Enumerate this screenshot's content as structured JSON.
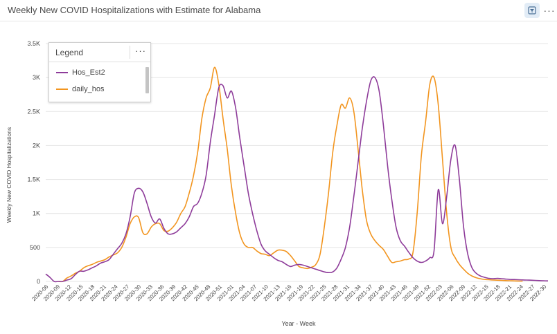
{
  "header": {
    "title": "Weekly New COVID Hospitalizations with Estimate for Alabama",
    "filter_icon": "filter-icon",
    "more_label": "···"
  },
  "legend": {
    "title": "Legend",
    "more_label": "···"
  },
  "colors": {
    "Hos_Est2": "#8e3c9a",
    "daily_hos": "#f2951f",
    "grid": "#e4e4e4",
    "axis_text": "#444444"
  },
  "chart_data": {
    "type": "line",
    "title": "Weekly New COVID Hospitalizations with Estimate for Alabama",
    "xlabel": "Year - Week",
    "ylabel": "Weekly New COVID Hospitalizations",
    "ylim": [
      0,
      3500
    ],
    "y_ticks": [
      0,
      500,
      1000,
      1500,
      2000,
      2500,
      3000,
      3500
    ],
    "y_tick_labels": [
      "0",
      "500",
      "1K",
      "1.5K",
      "2K",
      "2.5K",
      "3K",
      "3.5K"
    ],
    "x_tick_labels": [
      "2020-06",
      "2020-09",
      "2020-12",
      "2020-15",
      "2020-18",
      "2020-21",
      "2020-24",
      "2020-27",
      "2020-30",
      "2020-33",
      "2020-36",
      "2020-39",
      "2020-42",
      "2020-45",
      "2020-48",
      "2020-51",
      "2021-01",
      "2021-04",
      "2021-07",
      "2021-10",
      "2021-13",
      "2021-16",
      "2021-19",
      "2021-22",
      "2021-25",
      "2021-28",
      "2021-31",
      "2021-34",
      "2021-37",
      "2021-40",
      "2021-43",
      "2021-46",
      "2021-49",
      "2021-52",
      "2022-03",
      "2022-06",
      "2022-09",
      "2022-12",
      "2022-15",
      "2022-18",
      "2022-21",
      "2022-24",
      "2022-27",
      "2022-30"
    ],
    "grid": true,
    "legend_position": "top-left",
    "series": [
      {
        "name": "Hos_Est2",
        "values": [
          110,
          60,
          0,
          0,
          0,
          20,
          40,
          100,
          150,
          150,
          170,
          200,
          230,
          270,
          290,
          320,
          400,
          480,
          560,
          700,
          950,
          1300,
          1370,
          1320,
          1150,
          950,
          860,
          920,
          780,
          700,
          700,
          730,
          790,
          850,
          950,
          1100,
          1150,
          1300,
          1560,
          2050,
          2450,
          2850,
          2880,
          2700,
          2800,
          2550,
          2100,
          1700,
          1300,
          1000,
          750,
          550,
          450,
          400,
          350,
          310,
          290,
          250,
          220,
          240,
          250,
          240,
          220,
          200,
          180,
          160,
          140,
          130,
          140,
          200,
          330,
          500,
          800,
          1250,
          1750,
          2250,
          2650,
          2950,
          3000,
          2800,
          2300,
          1700,
          1200,
          800,
          600,
          520,
          430,
          350,
          300,
          280,
          300,
          350,
          450,
          1350,
          850,
          1250,
          1800,
          2000,
          1500,
          800,
          400,
          200,
          120,
          80,
          60,
          45,
          40,
          45,
          40,
          35,
          30,
          28,
          25,
          22,
          20,
          18,
          15,
          12,
          10,
          8
        ]
      },
      {
        "name": "daily_hos",
        "values": [
          null,
          null,
          null,
          0,
          0,
          50,
          80,
          120,
          150,
          200,
          230,
          250,
          280,
          300,
          320,
          360,
          390,
          420,
          500,
          650,
          850,
          950,
          940,
          720,
          700,
          800,
          850,
          850,
          750,
          740,
          790,
          870,
          1000,
          1100,
          1300,
          1550,
          1900,
          2400,
          2700,
          2850,
          3150,
          2900,
          2400,
          1950,
          1400,
          1000,
          700,
          550,
          500,
          500,
          450,
          410,
          400,
          380,
          420,
          460,
          460,
          440,
          380,
          300,
          220,
          200,
          190,
          210,
          250,
          400,
          800,
          1300,
          1900,
          2300,
          2600,
          2550,
          2700,
          2500,
          1950,
          1350,
          900,
          700,
          600,
          530,
          470,
          370,
          280,
          290,
          300,
          320,
          330,
          420,
          1000,
          1850,
          2350,
          2900,
          3000,
          2600,
          1800,
          1000,
          500,
          350,
          250,
          180,
          120,
          80,
          55,
          40,
          30,
          25,
          20,
          18,
          15,
          12,
          10,
          8,
          6,
          5
        ]
      }
    ]
  }
}
